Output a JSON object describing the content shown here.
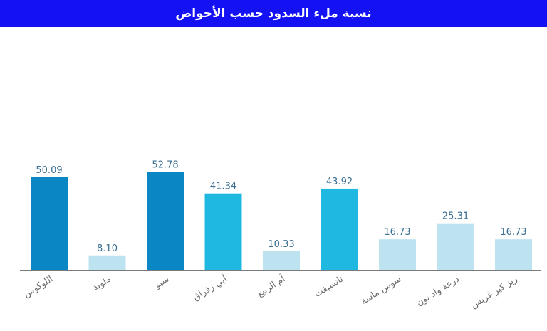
{
  "title": "نسبة ملء السدود حسب الأحواض",
  "colors": {
    "title_bg": "#1411f2",
    "dark": "#0a86c4",
    "mid": "#1fb8e0",
    "light": "#bde3f1",
    "axis": "#7a7a7a"
  },
  "chart_data": {
    "type": "bar",
    "categories": [
      "اللوكوس",
      "ملوية",
      "سبو",
      "أبي رقراق",
      "أم الربيع",
      "تانسيفت",
      "سوس ماسة",
      "درعة واد نون",
      "زيز كير غريس"
    ],
    "values": [
      50.09,
      8.1,
      52.78,
      41.34,
      10.33,
      43.92,
      16.73,
      25.31,
      16.73
    ],
    "labels": [
      "50.09",
      "8.10",
      "52.78",
      "41.34",
      "10.33",
      "43.92",
      "16.73",
      "25.31",
      "16.73"
    ],
    "bar_colors": [
      "dark",
      "light",
      "dark",
      "mid",
      "light",
      "mid",
      "light",
      "light",
      "light"
    ],
    "title": "نسبة ملء السدود حسب الأحواض",
    "xlabel": "",
    "ylabel": "",
    "ylim": [
      0,
      60
    ],
    "grid": false,
    "legend": "none"
  }
}
